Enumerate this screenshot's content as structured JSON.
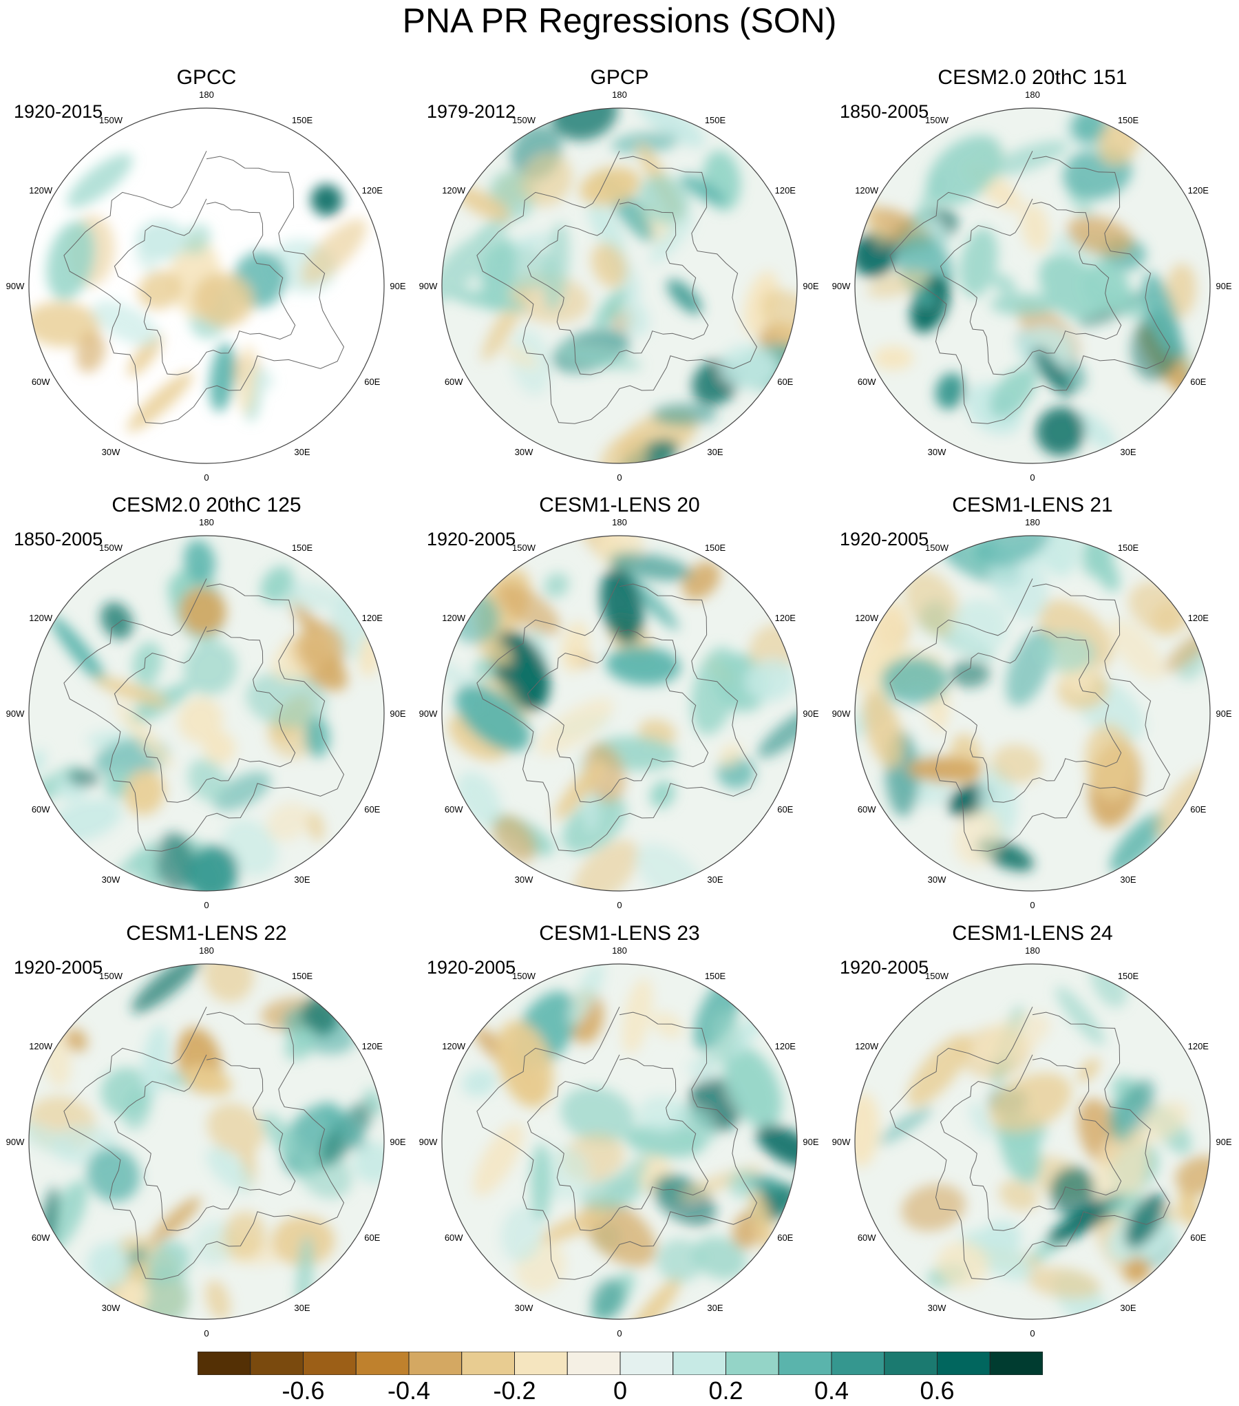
{
  "chart_data": {
    "type": "heatmap",
    "title": "PNA PR Regressions (SON)",
    "projection": "north polar stereographic",
    "longitude_labels": [
      "180",
      "150E",
      "120E",
      "90E",
      "60E",
      "30E",
      "0",
      "30W",
      "60W",
      "90W",
      "120W",
      "150W"
    ],
    "panels": [
      {
        "title": "GPCC",
        "period": "1920-2015",
        "land_only": true
      },
      {
        "title": "GPCP",
        "period": "1979-2012",
        "land_only": false
      },
      {
        "title": "CESM2.0 20thC 151",
        "period": "1850-2005",
        "land_only": false
      },
      {
        "title": "CESM2.0 20thC 125",
        "period": "1850-2005",
        "land_only": false
      },
      {
        "title": "CESM1-LENS 20",
        "period": "1920-2005",
        "land_only": false
      },
      {
        "title": "CESM1-LENS 21",
        "period": "1920-2005",
        "land_only": false
      },
      {
        "title": "CESM1-LENS 22",
        "period": "1920-2005",
        "land_only": false
      },
      {
        "title": "CESM1-LENS 23",
        "period": "1920-2005",
        "land_only": false
      },
      {
        "title": "CESM1-LENS 24",
        "period": "1920-2005",
        "land_only": false
      }
    ],
    "colorbar": {
      "levels": [
        -0.8,
        -0.7,
        -0.6,
        -0.5,
        -0.4,
        -0.3,
        -0.2,
        -0.1,
        0,
        0.1,
        0.2,
        0.3,
        0.4,
        0.5,
        0.6,
        0.7,
        0.8
      ],
      "colors": [
        "#543005",
        "#7a4a0e",
        "#9c5f17",
        "#bf812d",
        "#d4a862",
        "#e8cc91",
        "#f5e5bf",
        "#f5f0e4",
        "#e4f1ef",
        "#c7eae5",
        "#94d4c7",
        "#5ab4ac",
        "#35978f",
        "#1b7a70",
        "#01665e",
        "#003c30"
      ],
      "tick_labels": [
        "-0.6",
        "-0.4",
        "-0.2",
        "0",
        "0.2",
        "0.4",
        "0.6"
      ],
      "tick_values": [
        -0.6,
        -0.4,
        -0.2,
        0,
        0.2,
        0.4,
        0.6
      ]
    }
  },
  "colors": {
    "brown": "#a86a24",
    "teal": "#1f8a80",
    "dark_teal": "#0b5e55",
    "coast": "#666666"
  }
}
